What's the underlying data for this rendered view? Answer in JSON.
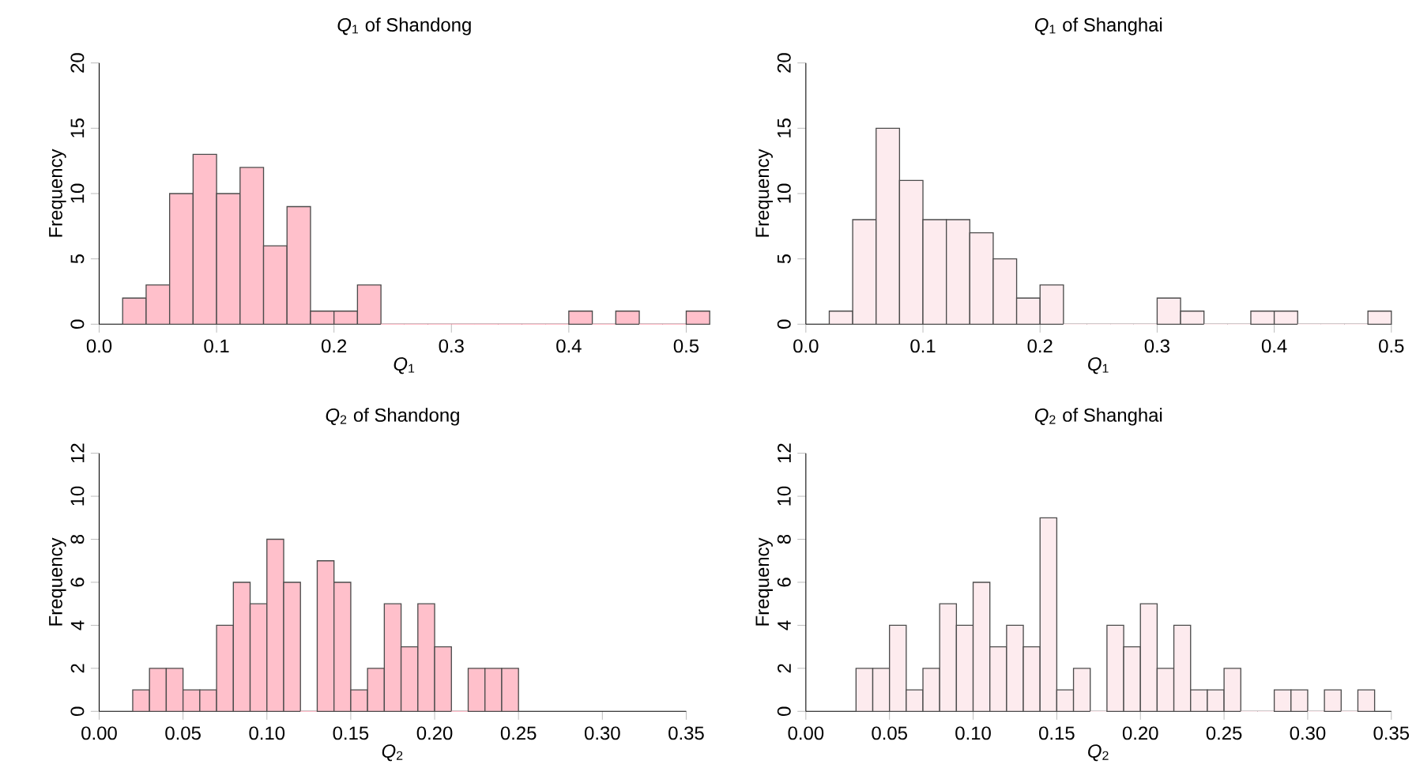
{
  "chart_data": [
    {
      "type": "histogram",
      "title": "*Q*$_{1}$ of Shandong",
      "xlabel": "*Q*$_{1}$",
      "ylabel": "Frequency",
      "color": "#ffc0cb",
      "bins": [
        0.02,
        0.04,
        0.06,
        0.08,
        0.1,
        0.12,
        0.14,
        0.16,
        0.18,
        0.2,
        0.22,
        0.24,
        0.26,
        0.28,
        0.3,
        0.32,
        0.34,
        0.36,
        0.38,
        0.4,
        0.42,
        0.44,
        0.46,
        0.48,
        0.5,
        0.52
      ],
      "values": [
        2,
        3,
        10,
        13,
        10,
        12,
        6,
        9,
        1,
        1,
        3,
        0,
        0,
        0,
        0,
        0,
        0,
        0,
        0,
        1,
        0,
        1,
        0,
        0,
        1
      ],
      "xlim": [
        0,
        0.52
      ],
      "ylim": [
        0,
        20
      ],
      "xticks": [
        {
          "value": 0,
          "label": "0.0"
        },
        0.1,
        0.2,
        0.3,
        0.4,
        0.5
      ],
      "yticks": [
        0,
        5,
        10,
        15,
        20
      ]
    },
    {
      "type": "histogram",
      "title": "*Q*$_{1}$ of Shanghai",
      "xlabel": "*Q*$_{1}$",
      "ylabel": "Frequency",
      "color": "#fdebee",
      "bins": [
        0.02,
        0.04,
        0.06,
        0.08,
        0.1,
        0.12,
        0.14,
        0.16,
        0.18,
        0.2,
        0.22,
        0.24,
        0.26,
        0.28,
        0.3,
        0.32,
        0.34,
        0.36,
        0.38,
        0.4,
        0.42,
        0.44,
        0.46,
        0.48,
        0.5
      ],
      "values": [
        1,
        8,
        15,
        11,
        8,
        8,
        7,
        5,
        2,
        3,
        0,
        0,
        0,
        0,
        2,
        1,
        0,
        0,
        1,
        1,
        0,
        0,
        0,
        1
      ],
      "xlim": [
        0,
        0.5
      ],
      "ylim": [
        0,
        20
      ],
      "xticks": [
        {
          "value": 0,
          "label": "0.0"
        },
        0.1,
        0.2,
        0.3,
        0.4,
        0.5
      ],
      "yticks": [
        0,
        5,
        10,
        15,
        20
      ]
    },
    {
      "type": "histogram",
      "title": "*Q*$_{2}$ of Shandong",
      "xlabel": "*Q*$_{2}$",
      "ylabel": "Frequency",
      "color": "#ffc0cb",
      "bins": [
        0.02,
        0.03,
        0.04,
        0.05,
        0.06,
        0.07,
        0.08,
        0.09,
        0.1,
        0.11,
        0.12,
        0.13,
        0.14,
        0.15,
        0.16,
        0.17,
        0.18,
        0.19,
        0.2,
        0.21,
        0.22,
        0.23,
        0.24,
        0.25
      ],
      "values": [
        1,
        2,
        2,
        1,
        1,
        4,
        6,
        5,
        8,
        6,
        0,
        7,
        6,
        1,
        2,
        5,
        3,
        5,
        3,
        0,
        2,
        2,
        2
      ],
      "xlim": [
        0,
        0.35
      ],
      "ylim": [
        0,
        12
      ],
      "xticks": [
        {
          "value": 0,
          "label": "0.00"
        },
        0.05,
        {
          "value": 0.1,
          "label": "0.10"
        },
        0.15,
        {
          "value": 0.2,
          "label": "0.20"
        },
        0.25,
        {
          "value": 0.3,
          "label": "0.30"
        },
        0.35
      ],
      "yticks": [
        0,
        2,
        4,
        6,
        8,
        10,
        12
      ]
    },
    {
      "type": "histogram",
      "title": "*Q*$_{2}$ of Shanghai",
      "xlabel": "*Q*$_{2}$",
      "ylabel": "Frequency",
      "color": "#fdebee",
      "bins": [
        0.03,
        0.04,
        0.05,
        0.06,
        0.07,
        0.08,
        0.09,
        0.1,
        0.11,
        0.12,
        0.13,
        0.14,
        0.15,
        0.16,
        0.17,
        0.18,
        0.19,
        0.2,
        0.21,
        0.22,
        0.23,
        0.24,
        0.25,
        0.26,
        0.27,
        0.28,
        0.29,
        0.3,
        0.31,
        0.32,
        0.33,
        0.34
      ],
      "values": [
        2,
        2,
        4,
        1,
        2,
        5,
        4,
        6,
        3,
        4,
        3,
        9,
        1,
        2,
        0,
        4,
        3,
        5,
        2,
        4,
        1,
        1,
        2,
        0,
        0,
        1,
        1,
        0,
        1,
        0,
        1
      ],
      "xlim": [
        0,
        0.35
      ],
      "ylim": [
        0,
        12
      ],
      "xticks": [
        {
          "value": 0,
          "label": "0.00"
        },
        0.05,
        {
          "value": 0.1,
          "label": "0.10"
        },
        0.15,
        {
          "value": 0.2,
          "label": "0.20"
        },
        0.25,
        {
          "value": 0.3,
          "label": "0.30"
        },
        0.35
      ],
      "yticks": [
        0,
        2,
        4,
        6,
        8,
        10,
        12
      ]
    }
  ]
}
